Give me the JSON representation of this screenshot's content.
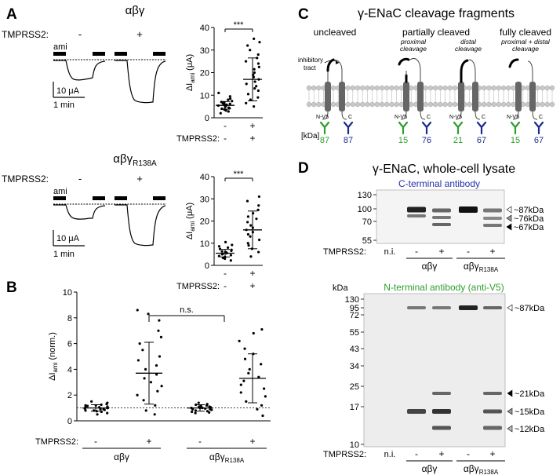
{
  "panels": {
    "A": {
      "letter": "A",
      "groups": [
        {
          "title": "αβγ",
          "title_sub": "",
          "tmprss2_label": "TMPRSS2:",
          "trace_minus": "-",
          "trace_plus": "+",
          "ami": "ami",
          "scale_current": "10 μA",
          "scale_time": "1 min",
          "ylabel_main": "ΔI",
          "ylabel_sub": "ami",
          "ylabel_unit": " (μA)",
          "yticks": [
            "0",
            "10",
            "20",
            "30",
            "40"
          ],
          "sig": "***",
          "x_tmprss2": "TMPRSS2:",
          "x_minus": "-",
          "x_plus": "+",
          "chart_data": {
            "type": "scatter",
            "ylim": [
              0,
              40
            ],
            "categories": [
              "-",
              "+"
            ],
            "mean": [
              5.5,
              17
            ],
            "sd": [
              [
                3.8,
                7.2
              ],
              [
                7.5,
                26.5
              ]
            ],
            "points": [
              [
                2,
                2.8,
                3.2,
                3.6,
                4,
                4.2,
                4.5,
                4.8,
                5,
                5.2,
                5.4,
                5.6,
                5.8,
                6,
                6.2,
                6.5,
                6.8,
                7,
                7.4,
                8,
                8.5,
                9.5,
                11
              ],
              [
                5,
                6.5,
                8,
                9,
                10.5,
                12,
                13,
                14,
                15,
                16,
                17,
                18,
                19,
                20,
                21.5,
                22.5,
                24,
                25,
                26.5,
                28,
                30,
                32,
                33.5,
                35
              ]
            ]
          }
        },
        {
          "title": "αβγ",
          "title_sub": "R138A",
          "tmprss2_label": "TMPRSS2:",
          "trace_minus": "-",
          "trace_plus": "+",
          "ami": "ami",
          "scale_current": "10 μA",
          "scale_time": "1 min",
          "ylabel_main": "ΔI",
          "ylabel_sub": "ami",
          "ylabel_unit": " (μA)",
          "yticks": [
            "0",
            "10",
            "20",
            "30",
            "40"
          ],
          "sig": "***",
          "x_tmprss2": "TMPRSS2:",
          "x_minus": "-",
          "x_plus": "+",
          "chart_data": {
            "type": "scatter",
            "ylim": [
              0,
              40
            ],
            "categories": [
              "-",
              "+"
            ],
            "mean": [
              5.5,
              16
            ],
            "sd": [
              [
                3.8,
                7.2
              ],
              [
                7.5,
                24.5
              ]
            ],
            "points": [
              [
                2.2,
                3,
                3.4,
                3.8,
                4.2,
                4.6,
                5,
                5.2,
                5.5,
                5.8,
                6,
                6.3,
                6.6,
                7,
                7.4,
                8,
                8.6,
                9.2,
                10.5
              ],
              [
                4,
                6,
                7.5,
                9,
                10,
                11.5,
                13,
                14,
                15,
                16,
                17,
                18,
                19.5,
                21,
                22,
                23.5,
                25,
                27,
                29,
                31
              ]
            ]
          }
        }
      ]
    },
    "B": {
      "letter": "B",
      "ylabel_main": "ΔI",
      "ylabel_sub": "ami",
      "ylabel_unit": " (norm.)",
      "yticks": [
        "0",
        "2",
        "4",
        "6",
        "8",
        "10"
      ],
      "sig": "n.s.",
      "x_tmprss2": "TMPRSS2:",
      "signs": [
        "-",
        "+",
        "-",
        "+"
      ],
      "group_labels": [
        "αβγ",
        "αβγ"
      ],
      "group_subs": [
        "",
        "R138A"
      ],
      "chart_data": {
        "type": "scatter",
        "ylim": [
          0,
          10
        ],
        "categories": [
          "αβγ -",
          "αβγ +",
          "αβγR138A -",
          "αβγR138A +"
        ],
        "mean": [
          1.0,
          3.7,
          1.0,
          3.3
        ],
        "sd": [
          [
            0.75,
            1.25
          ],
          [
            1.3,
            6.1
          ],
          [
            0.75,
            1.25
          ],
          [
            1.4,
            5.2
          ]
        ],
        "points": [
          [
            0.5,
            0.6,
            0.7,
            0.75,
            0.8,
            0.85,
            0.9,
            0.95,
            1.0,
            1.0,
            1.05,
            1.1,
            1.15,
            1.2,
            1.25,
            1.3,
            1.4,
            1.5,
            0.9,
            1.1,
            0.8,
            1.2
          ],
          [
            0.5,
            0.8,
            1.2,
            1.6,
            2.0,
            2.3,
            2.7,
            3.0,
            3.3,
            3.6,
            4.0,
            4.3,
            4.7,
            5.0,
            5.5,
            6.0,
            6.5,
            7.0,
            7.8,
            8.3,
            8.6
          ],
          [
            0.6,
            0.65,
            0.7,
            0.8,
            0.85,
            0.9,
            0.95,
            1.0,
            1.0,
            1.05,
            1.1,
            1.15,
            1.2,
            1.25,
            1.3,
            1.4,
            0.9,
            1.1,
            0.75,
            1.2,
            1.0
          ],
          [
            0.4,
            0.9,
            1.2,
            1.5,
            1.9,
            2.2,
            2.5,
            2.8,
            3.1,
            3.4,
            3.7,
            4.0,
            4.4,
            4.8,
            5.2,
            5.6,
            6.2,
            6.8,
            7.1
          ]
        ]
      }
    },
    "C": {
      "letter": "C",
      "title": "γ-ENaC cleavage fragments",
      "states": [
        "uncleaved",
        "partially cleaved",
        "fully cleaved"
      ],
      "cleavage_labels": [
        [
          "proximal",
          "cleavage"
        ],
        [
          "distal",
          "cleavage"
        ],
        [
          "proximal + distal",
          "cleavage"
        ]
      ],
      "inhibitory": [
        "inhibitory",
        "tract"
      ],
      "nv5": "N-V5",
      "c": "C",
      "kda_label": "[kDa]",
      "kda_values": [
        {
          "value": "87",
          "color": "#2e9e2e"
        },
        {
          "value": "87",
          "color": "#1c2b8c"
        },
        {
          "value": "15",
          "color": "#2e9e2e"
        },
        {
          "value": "76",
          "color": "#1c2b8c"
        },
        {
          "value": "21",
          "color": "#2e9e2e"
        },
        {
          "value": "67",
          "color": "#1c2b8c"
        },
        {
          "value": "15",
          "color": "#2e9e2e"
        },
        {
          "value": "67",
          "color": "#1c2b8c"
        }
      ]
    },
    "D": {
      "letter": "D",
      "title": "γ-ENaC, whole-cell lysate",
      "blot1": {
        "antibody": "C-terminal antibody",
        "antibody_color": "#2233aa",
        "markers": [
          "130",
          "100",
          "70",
          "55"
        ],
        "bands": [
          "~87kDa",
          "~76kDa",
          "~67kDa"
        ]
      },
      "blot2": {
        "kda": "kDa",
        "antibody": "N-terminal antibody (anti-V5)",
        "antibody_color": "#2e9e2e",
        "markers": [
          "130",
          "95",
          "72",
          "55",
          "43",
          "34",
          "25",
          "17",
          "10"
        ],
        "bands": [
          "~87kDa",
          "~21kDa",
          "~15kDa",
          "~12kDa"
        ]
      },
      "tmprss2": "TMPRSS2:",
      "ni": "n.i.",
      "minus": "-",
      "plus": "+",
      "group_labels": [
        "αβγ",
        "αβγ"
      ],
      "group_subs": [
        "",
        "R138A"
      ]
    }
  }
}
